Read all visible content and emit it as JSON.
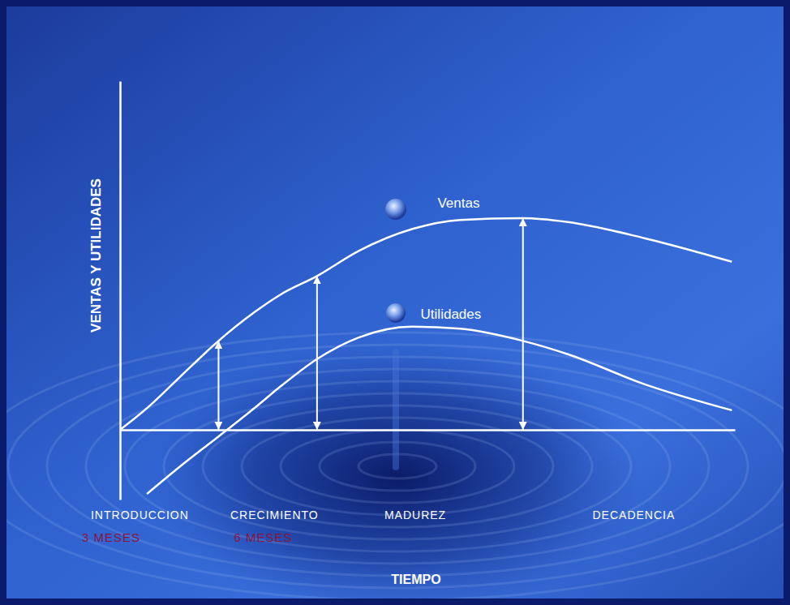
{
  "chart_data": {
    "type": "line",
    "x_label": "TIEMPO",
    "y_label": "VENTAS Y UTILIDADES",
    "x": [
      0,
      0.9,
      2,
      3.3,
      4.5,
      5.4,
      6.6,
      8,
      9.8,
      11.4,
      13.5,
      15,
      17.6,
      20.5
    ],
    "series": [
      {
        "name": "Ventas",
        "color": "#ffffff",
        "values": [
          0,
          0.62,
          1.51,
          2.55,
          3.37,
          3.89,
          4.41,
          5.13,
          5.76,
          6.02,
          6.07,
          5.96,
          5.49,
          4.82
        ]
      },
      {
        "name": "Utilidades",
        "color": "#ffffff",
        "values": [
          null,
          -1.84,
          -1.06,
          -0.19,
          0.62,
          1.26,
          2.03,
          2.65,
          2.96,
          2.9,
          2.55,
          2.17,
          1.3,
          0.56
        ]
      }
    ],
    "xlim": [
      0,
      20.6
    ],
    "ylim": [
      -2,
      10
    ],
    "xticks": [
      {
        "value": 0.65,
        "label": "INTRODUCCION"
      },
      {
        "value": 5.16,
        "label": "CRECIMIENTO"
      },
      {
        "value": 9.88,
        "label": "MADUREZ"
      },
      {
        "value": 17.2,
        "label": "DECADENCIA"
      }
    ],
    "yticks": [],
    "tick_labels": "x",
    "grid": false,
    "annotations": [
      {
        "text": "3 MESES",
        "x": -0.3
      },
      {
        "text": "6 MESES",
        "x": 4.8
      }
    ],
    "arrows_x": [
      3.3,
      6.6,
      13.5
    ]
  }
}
